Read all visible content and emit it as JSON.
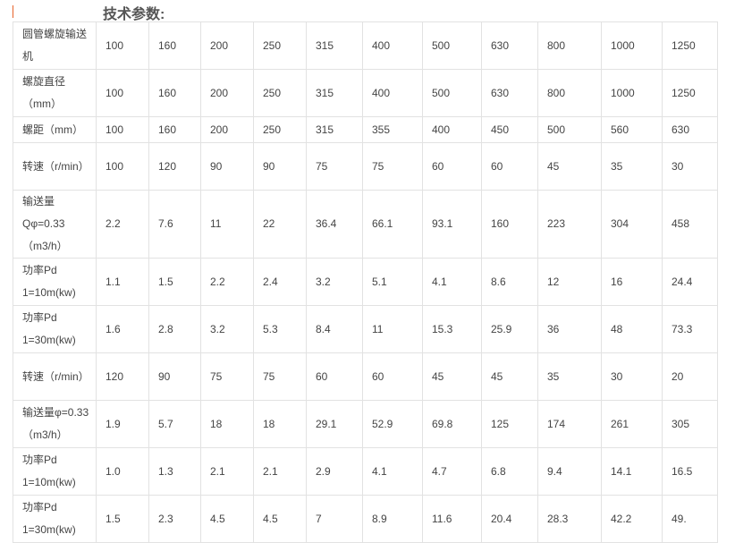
{
  "title": "技术参数:",
  "rows": [
    {
      "label": "圆管螺旋输送机",
      "values": [
        "100",
        "160",
        "200",
        "250",
        "315",
        "400",
        "500",
        "630",
        "800",
        "1000",
        "1250"
      ]
    },
    {
      "label": "螺旋直径（mm）",
      "values": [
        "100",
        "160",
        "200",
        "250",
        "315",
        "400",
        "500",
        "630",
        "800",
        "1000",
        "1250"
      ]
    },
    {
      "label": "螺距（mm）",
      "values": [
        "100",
        "160",
        "200",
        "250",
        "315",
        "355",
        "400",
        "450",
        "500",
        "560",
        "630"
      ]
    },
    {
      "label": "转速（r/min）",
      "values": [
        "100",
        "120",
        "90",
        "90",
        "75",
        "75",
        "60",
        "60",
        "45",
        "35",
        "30"
      ]
    },
    {
      "label": "输送量Qφ=0.33（m3/h）",
      "values": [
        "2.2",
        "7.6",
        "11",
        "22",
        "36.4",
        "66.1",
        "93.1",
        "160",
        "223",
        "304",
        "458"
      ]
    },
    {
      "label": "功率Pd 1=10m(kw)",
      "values": [
        "1.1",
        "1.5",
        "2.2",
        "2.4",
        "3.2",
        "5.1",
        "4.1",
        "8.6",
        "12",
        "16",
        "24.4"
      ]
    },
    {
      "label": "功率Pd 1=30m(kw)",
      "values": [
        "1.6",
        "2.8",
        "3.2",
        "5.3",
        "8.4",
        "11",
        "15.3",
        "25.9",
        "36",
        "48",
        "73.3"
      ]
    },
    {
      "label": "转速（r/min）",
      "values": [
        "120",
        "90",
        "75",
        "75",
        "60",
        "60",
        "45",
        "45",
        "35",
        "30",
        "20"
      ]
    },
    {
      "label": "输送量φ=0.33（m3/h）",
      "values": [
        "1.9",
        "5.7",
        "18",
        "18",
        "29.1",
        "52.9",
        "69.8",
        "125",
        "174",
        "261",
        "305"
      ]
    },
    {
      "label": "功率Pd 1=10m(kw)",
      "values": [
        "1.0",
        "1.3",
        "2.1",
        "2.1",
        "2.9",
        "4.1",
        "4.7",
        "6.8",
        "9.4",
        "14.1",
        "16.5"
      ]
    },
    {
      "label": "功率Pd 1=30m(kw)",
      "values": [
        "1.5",
        "2.3",
        "4.5",
        "4.5",
        "7",
        "8.9",
        "11.6",
        "20.4",
        "28.3",
        "42.2",
        "49."
      ]
    }
  ]
}
